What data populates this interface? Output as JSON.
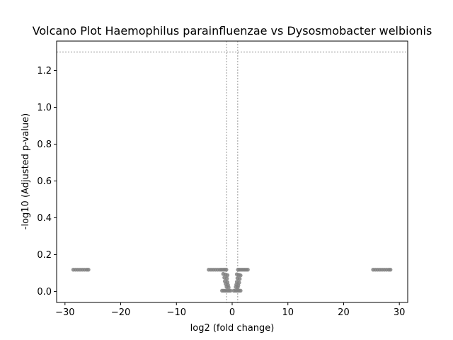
{
  "chart_data": {
    "type": "scatter",
    "title": "Volcano Plot Haemophilus parainfluenzae vs Dysosmobacter welbionis",
    "xlabel": "log2 (fold change)",
    "ylabel": "-log10 (Adjusted p-value)",
    "xlim": [
      -31.5,
      31.5
    ],
    "ylim": [
      -0.06,
      1.36
    ],
    "xticks": [
      -30,
      -20,
      -10,
      0,
      10,
      20,
      30
    ],
    "xtick_labels": [
      "−30",
      "−20",
      "−10",
      "0",
      "10",
      "20",
      "30"
    ],
    "yticks": [
      0.0,
      0.2,
      0.4,
      0.6,
      0.8,
      1.0,
      1.2
    ],
    "ytick_labels": [
      "0.0",
      "0.2",
      "0.4",
      "0.6",
      "0.8",
      "1.0",
      "1.2"
    ],
    "grid": false,
    "threshold_lines": {
      "horizontal_y": 1.301,
      "vertical_x": [
        -1,
        1
      ]
    },
    "point_color": "#808080",
    "threshold_color": "#808080",
    "points": [
      [
        -28.5,
        0.118
      ],
      [
        -28.1,
        0.118
      ],
      [
        -27.7,
        0.118
      ],
      [
        -27.3,
        0.118
      ],
      [
        -26.9,
        0.118
      ],
      [
        -26.5,
        0.118
      ],
      [
        -26.1,
        0.118
      ],
      [
        -25.8,
        0.118
      ],
      [
        -4.2,
        0.118
      ],
      [
        -3.8,
        0.118
      ],
      [
        -3.4,
        0.118
      ],
      [
        -3.0,
        0.118
      ],
      [
        -2.6,
        0.118
      ],
      [
        -2.2,
        0.118
      ],
      [
        -1.9,
        0.118
      ],
      [
        -1.6,
        0.118
      ],
      [
        -1.3,
        0.118
      ],
      [
        -1.05,
        0.118
      ],
      [
        1.05,
        0.118
      ],
      [
        1.3,
        0.118
      ],
      [
        1.6,
        0.118
      ],
      [
        1.9,
        0.118
      ],
      [
        2.2,
        0.118
      ],
      [
        2.5,
        0.118
      ],
      [
        2.8,
        0.118
      ],
      [
        -1.6,
        0.095
      ],
      [
        -1.2,
        0.092
      ],
      [
        -0.85,
        0.088
      ],
      [
        0.85,
        0.093
      ],
      [
        1.2,
        0.09
      ],
      [
        1.5,
        0.087
      ],
      [
        -1.4,
        0.075
      ],
      [
        -0.95,
        0.07
      ],
      [
        0.95,
        0.072
      ],
      [
        1.35,
        0.068
      ],
      [
        -1.3,
        0.055
      ],
      [
        -0.85,
        0.05
      ],
      [
        0.85,
        0.052
      ],
      [
        1.25,
        0.048
      ],
      [
        -1.15,
        0.04
      ],
      [
        -0.75,
        0.035
      ],
      [
        0.75,
        0.037
      ],
      [
        1.1,
        0.033
      ],
      [
        -1.0,
        0.025
      ],
      [
        -0.65,
        0.022
      ],
      [
        0.65,
        0.024
      ],
      [
        1.0,
        0.021
      ],
      [
        -1.8,
        0.004
      ],
      [
        -1.5,
        0.004
      ],
      [
        -1.2,
        0.004
      ],
      [
        -0.9,
        0.004
      ],
      [
        -0.6,
        0.004
      ],
      [
        -0.3,
        0.004
      ],
      [
        0.3,
        0.004
      ],
      [
        0.6,
        0.004
      ],
      [
        0.9,
        0.004
      ],
      [
        1.2,
        0.004
      ],
      [
        1.5,
        0.004
      ],
      [
        25.3,
        0.118
      ],
      [
        25.7,
        0.118
      ],
      [
        26.1,
        0.118
      ],
      [
        26.5,
        0.118
      ],
      [
        26.9,
        0.118
      ],
      [
        27.3,
        0.118
      ],
      [
        27.7,
        0.118
      ],
      [
        28.1,
        0.118
      ],
      [
        28.4,
        0.118
      ]
    ]
  }
}
